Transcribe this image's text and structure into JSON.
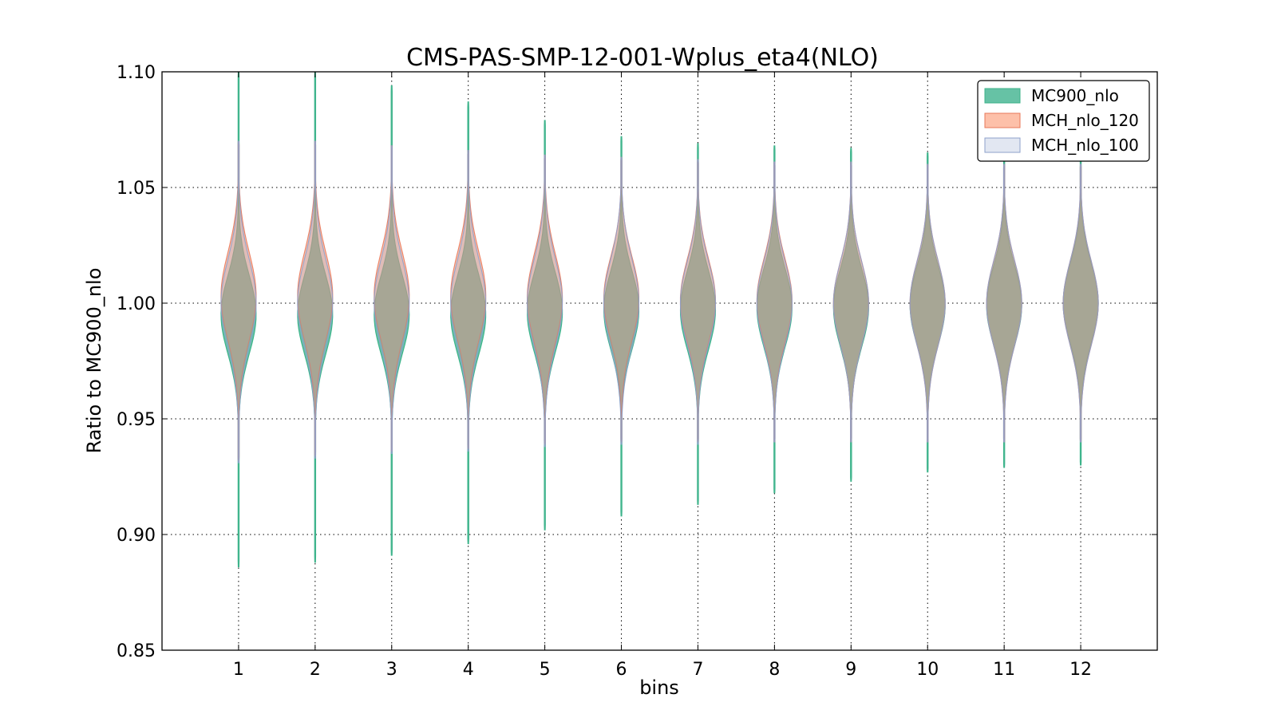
{
  "chart_data": {
    "type": "violin",
    "title": "CMS-PAS-SMP-12-001-Wplus_eta4(NLO)",
    "xlabel": "bins",
    "ylabel": "Ratio to MC900_nlo",
    "ylim": [
      0.85,
      1.1
    ],
    "xlim": [
      0,
      13
    ],
    "x_ticks": [
      "1",
      "2",
      "3",
      "4",
      "5",
      "6",
      "7",
      "8",
      "9",
      "10",
      "11",
      "12"
    ],
    "y_ticks": [
      "0.85",
      "0.90",
      "0.95",
      "1.00",
      "1.05",
      "1.10"
    ],
    "y_tick_values": [
      0.85,
      0.9,
      0.95,
      1.0,
      1.05,
      1.1
    ],
    "grid": true,
    "legend_position": "top-right",
    "series": [
      {
        "name": "MC900_nlo",
        "color": "#66c2a5",
        "edge_color": "#3cb38a",
        "opacity": 1.0,
        "bins": [
          1,
          2,
          3,
          4,
          5,
          6,
          7,
          8,
          9,
          10,
          11,
          12
        ],
        "min": [
          0.886,
          0.888,
          0.891,
          0.896,
          0.902,
          0.908,
          0.913,
          0.918,
          0.923,
          0.927,
          0.929,
          0.93
        ],
        "max": [
          1.1,
          1.1,
          1.094,
          1.087,
          1.079,
          1.072,
          1.069,
          1.068,
          1.067,
          1.065,
          1.064,
          1.063
        ],
        "center": [
          0.995,
          0.995,
          0.995,
          0.995,
          0.996,
          0.997,
          0.997,
          0.998,
          0.998,
          0.999,
          0.999,
          1.0
        ],
        "spread": [
          0.017,
          0.017,
          0.017,
          0.017,
          0.017,
          0.017,
          0.017,
          0.017,
          0.017,
          0.017,
          0.017,
          0.017
        ]
      },
      {
        "name": "MCH_nlo_120",
        "color": "#fc8d62",
        "edge_color": "#e8785a",
        "opacity": 0.5,
        "bins": [
          1,
          2,
          3,
          4,
          5,
          6,
          7,
          8,
          9,
          10,
          11,
          12
        ],
        "min": [
          0.932,
          0.934,
          0.936,
          0.937,
          0.939,
          0.94,
          0.94,
          0.94,
          0.94,
          0.94,
          0.94,
          0.94
        ],
        "max": [
          1.07,
          1.07,
          1.068,
          1.066,
          1.064,
          1.063,
          1.062,
          1.061,
          1.061,
          1.06,
          1.06,
          1.06
        ],
        "center": [
          1.003,
          1.003,
          1.003,
          1.003,
          1.002,
          1.002,
          1.001,
          1.001,
          1.0,
          1.0,
          1.0,
          1.0
        ],
        "spread": [
          0.019,
          0.019,
          0.019,
          0.019,
          0.019,
          0.018,
          0.018,
          0.018,
          0.018,
          0.018,
          0.018,
          0.018
        ]
      },
      {
        "name": "MCH_nlo_100",
        "color": "#8da0cb",
        "edge_color": "#8da0cb",
        "opacity": 0.25,
        "bins": [
          1,
          2,
          3,
          4,
          5,
          6,
          7,
          8,
          9,
          10,
          11,
          12
        ],
        "min": [
          0.931,
          0.933,
          0.935,
          0.936,
          0.938,
          0.939,
          0.939,
          0.94,
          0.94,
          0.94,
          0.94,
          0.94
        ],
        "max": [
          1.07,
          1.07,
          1.068,
          1.066,
          1.064,
          1.063,
          1.062,
          1.061,
          1.061,
          1.06,
          1.06,
          1.06
        ],
        "center": [
          1.0,
          1.0,
          1.0,
          1.0,
          1.0,
          1.0,
          1.0,
          1.0,
          1.0,
          1.0,
          1.0,
          1.0
        ],
        "spread": [
          0.019,
          0.019,
          0.019,
          0.019,
          0.019,
          0.019,
          0.018,
          0.018,
          0.018,
          0.018,
          0.018,
          0.018
        ]
      }
    ]
  }
}
